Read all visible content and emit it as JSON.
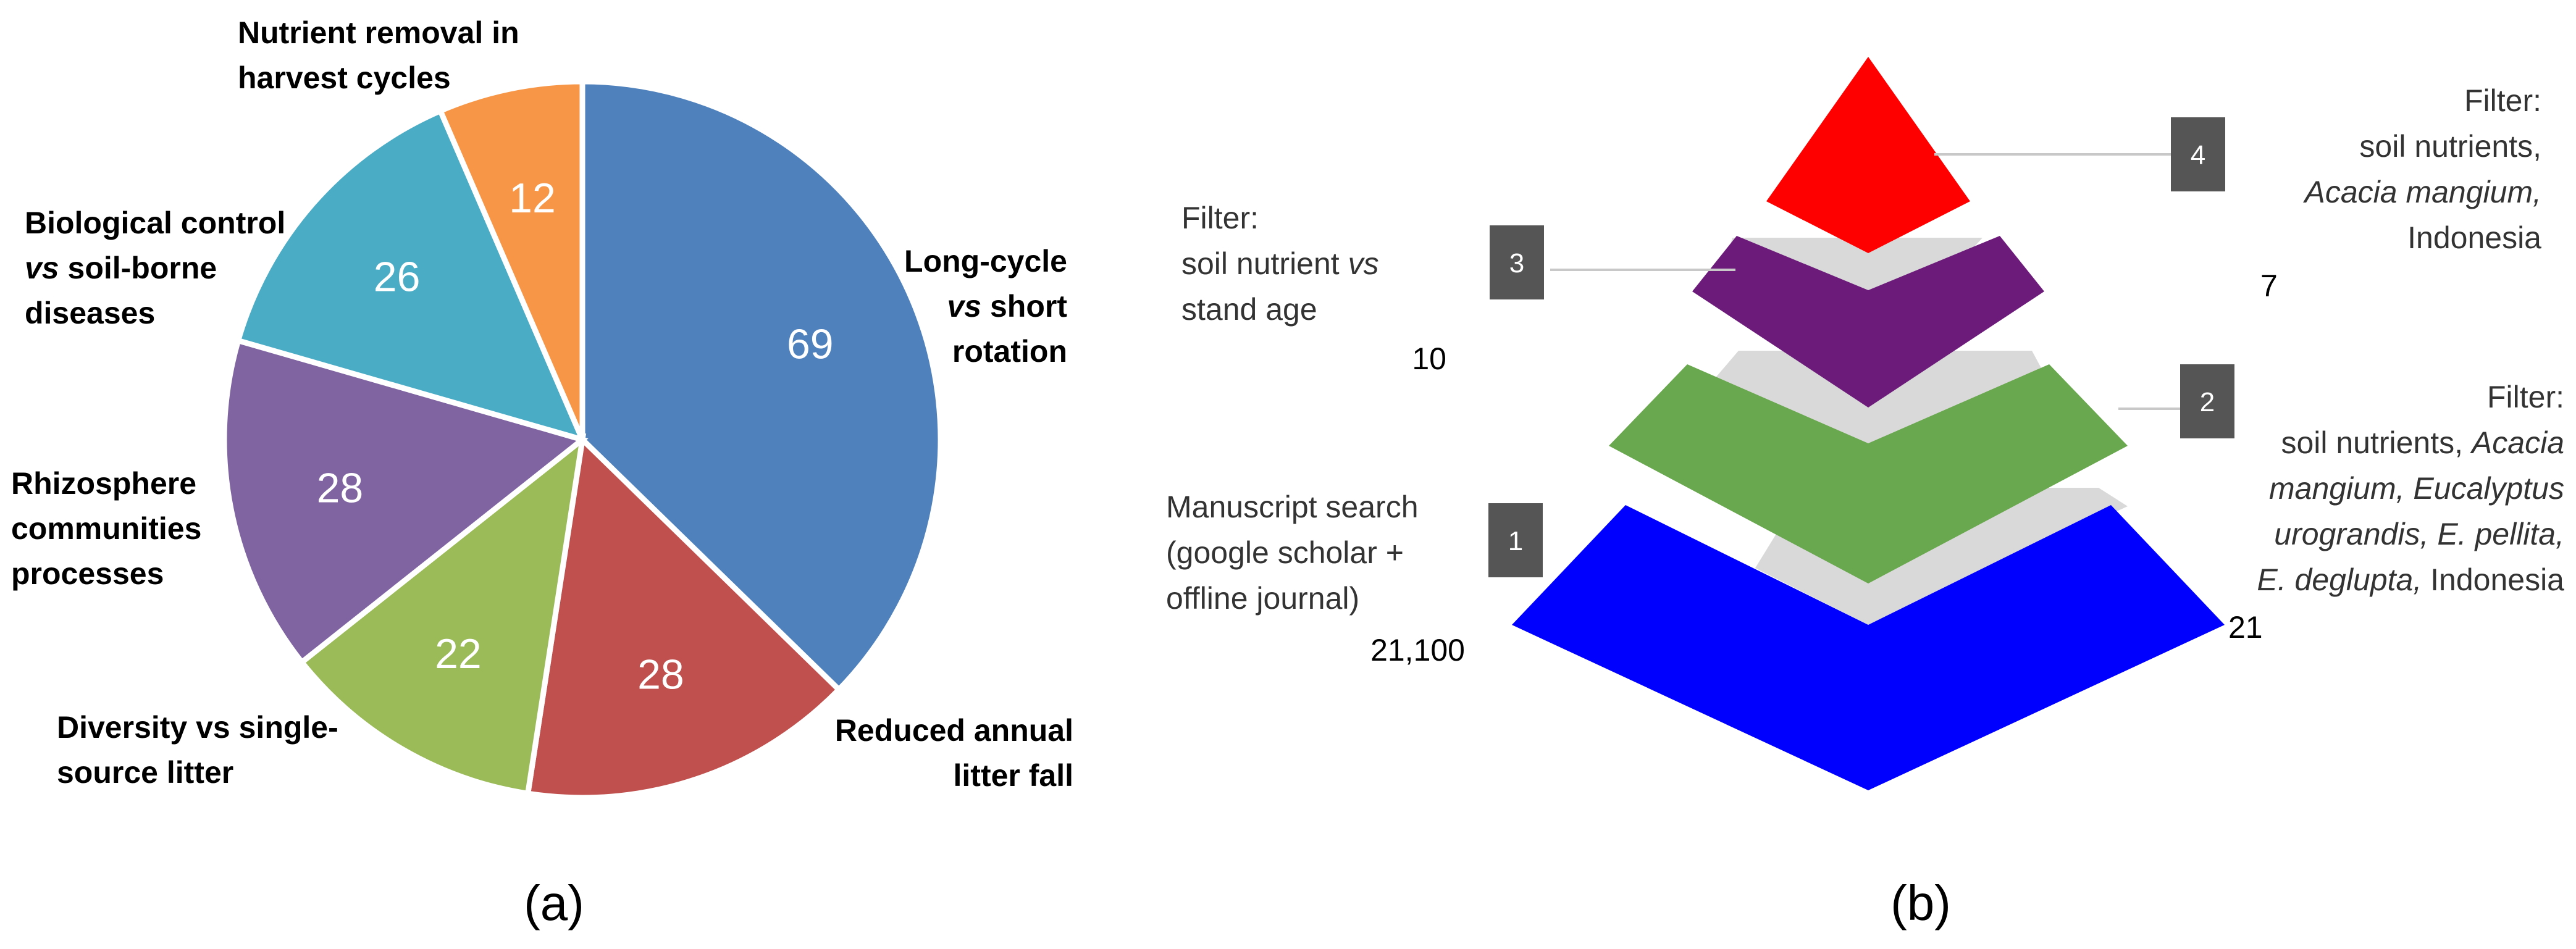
{
  "chart_data": [
    {
      "type": "pie",
      "categories": [
        "Long-cycle vs short rotation",
        "Reduced annual litter fall",
        "Diversity vs single-source litter",
        "Rhizosphere communities processes",
        "Biological control vs soil-borne diseases",
        "Nutrient removal in harvest cycles"
      ],
      "values": [
        69,
        28,
        22,
        28,
        26,
        12
      ],
      "colors": [
        "#4f81bd",
        "#c0504d",
        "#9bbb59",
        "#8064a2",
        "#4bacc6",
        "#f79646"
      ],
      "labels": [
        [
          [
            {
              "t": "Long-cycle",
              "i": false
            }
          ],
          [
            {
              "t": "vs",
              "i": true
            },
            {
              "t": " short",
              "i": false
            }
          ],
          [
            {
              "t": "rotation",
              "i": false
            }
          ]
        ],
        [
          [
            {
              "t": "Reduced annual",
              "i": false
            }
          ],
          [
            {
              "t": "litter fall",
              "i": false
            }
          ]
        ],
        [
          [
            {
              "t": "Diversity vs single-",
              "i": false
            }
          ],
          [
            {
              "t": "source litter",
              "i": false
            }
          ]
        ],
        [
          [
            {
              "t": "Rhizosphere",
              "i": false
            }
          ],
          [
            {
              "t": "communities",
              "i": false
            }
          ],
          [
            {
              "t": "processes",
              "i": false
            }
          ]
        ],
        [
          [
            {
              "t": "Biological control",
              "i": false
            }
          ],
          [
            {
              "t": "vs",
              "i": true
            },
            {
              "t": " soil-borne",
              "i": false
            }
          ],
          [
            {
              "t": "diseases",
              "i": false
            }
          ]
        ],
        [
          [
            {
              "t": "Nutrient removal in",
              "i": false
            }
          ],
          [
            {
              "t": "harvest cycles",
              "i": false
            }
          ]
        ]
      ],
      "caption": "(a)"
    },
    {
      "type": "funnel",
      "caption": "(b)",
      "levels": [
        {
          "step": "1",
          "color": "#0000ff",
          "count": "21,100",
          "text": [
            [
              {
                "t": "Manuscript search",
                "i": false
              }
            ],
            [
              {
                "t": "(google scholar +",
                "i": false
              }
            ],
            [
              {
                "t": "offline journal)",
                "i": false
              }
            ]
          ]
        },
        {
          "step": "2",
          "color": "#6aa84f",
          "count": "21",
          "text": [
            [
              {
                "t": "Filter:",
                "i": false
              }
            ],
            [
              {
                "t": "soil nutrients, ",
                "i": false
              },
              {
                "t": "Acacia",
                "i": true
              }
            ],
            [
              {
                "t": "mangium, Eucalyptus",
                "i": true
              }
            ],
            [
              {
                "t": "urograndis, E. pellita,",
                "i": true
              }
            ],
            [
              {
                "t": "E. deglupta,",
                "i": true
              },
              {
                "t": " Indonesia",
                "i": false
              }
            ]
          ]
        },
        {
          "step": "3",
          "color": "#6d1b7b",
          "count": "10",
          "text": [
            [
              {
                "t": "Filter:",
                "i": false
              }
            ],
            [
              {
                "t": "soil nutrient ",
                "i": false
              },
              {
                "t": "vs",
                "i": true
              }
            ],
            [
              {
                "t": "stand age",
                "i": false
              }
            ]
          ]
        },
        {
          "step": "4",
          "color": "#ff0000",
          "count": "7",
          "text": [
            [
              {
                "t": "Filter:",
                "i": false
              }
            ],
            [
              {
                "t": "soil nutrients,",
                "i": false
              }
            ],
            [
              {
                "t": "Acacia mangium,",
                "i": true
              }
            ],
            [
              {
                "t": "Indonesia",
                "i": false
              }
            ]
          ]
        }
      ]
    }
  ]
}
